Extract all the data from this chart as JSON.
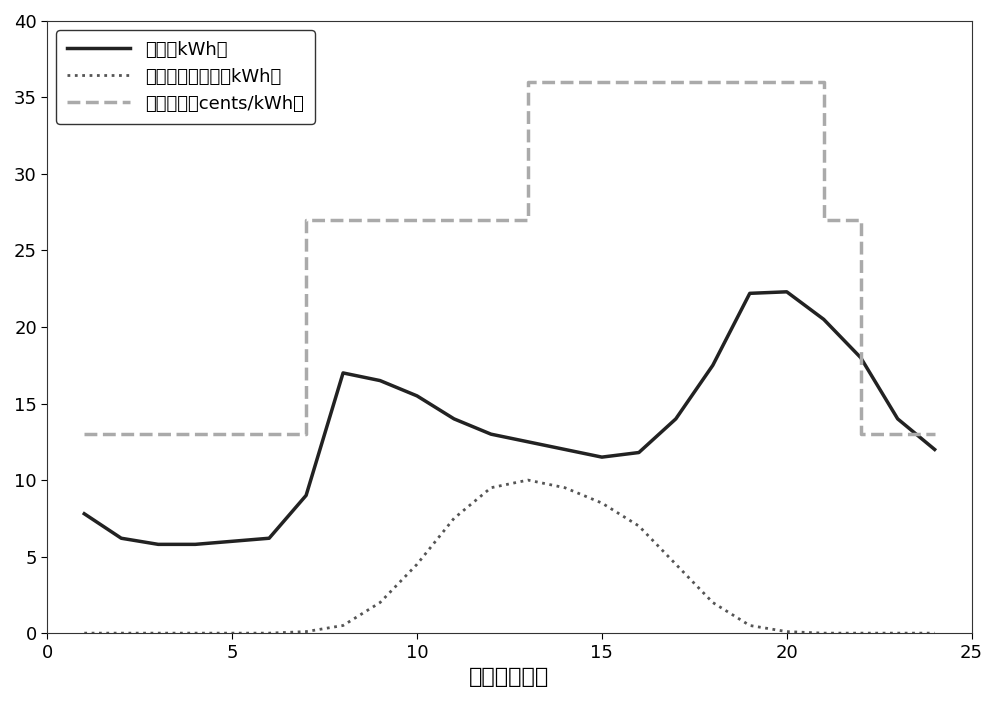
{
  "load_x": [
    1,
    2,
    3,
    4,
    5,
    6,
    7,
    8,
    9,
    10,
    11,
    12,
    13,
    14,
    15,
    16,
    17,
    18,
    19,
    20,
    21,
    22,
    23,
    24
  ],
  "load_y": [
    7.8,
    6.2,
    5.8,
    5.8,
    6.0,
    6.2,
    9.0,
    17.0,
    16.5,
    15.5,
    14.0,
    13.0,
    12.5,
    12.0,
    11.5,
    11.8,
    14.0,
    17.5,
    22.2,
    22.3,
    20.5,
    18.0,
    14.0,
    12.0
  ],
  "renewable_x": [
    1,
    2,
    3,
    4,
    5,
    6,
    7,
    8,
    9,
    10,
    11,
    12,
    13,
    14,
    15,
    16,
    17,
    18,
    19,
    20,
    21,
    22,
    23,
    24
  ],
  "renewable_y": [
    0.0,
    0.0,
    0.0,
    0.0,
    0.0,
    0.0,
    0.1,
    0.5,
    2.0,
    4.5,
    7.5,
    9.5,
    10.0,
    9.5,
    8.5,
    7.0,
    4.5,
    2.0,
    0.5,
    0.1,
    0.0,
    0.0,
    0.0,
    0.0
  ],
  "price_x": [
    1,
    7,
    7,
    13,
    13,
    21,
    21,
    22,
    22,
    24
  ],
  "price_y": [
    13,
    13,
    27,
    27,
    36,
    36,
    27,
    27,
    13,
    13
  ],
  "load_color": "#222222",
  "renewable_color": "#555555",
  "price_color": "#aaaaaa",
  "xlabel": "时间（小时）",
  "legend_load": "负载（kWh）",
  "legend_renewable": "可再生能源发电（kWh）",
  "legend_price": "电网价格（cents/kWh）",
  "xlim": [
    0,
    25
  ],
  "ylim": [
    0,
    40
  ],
  "xticks": [
    0,
    5,
    10,
    15,
    20,
    25
  ],
  "yticks": [
    0,
    5,
    10,
    15,
    20,
    25,
    30,
    35,
    40
  ],
  "xlabel_fontsize": 16,
  "legend_fontsize": 13,
  "tick_fontsize": 13
}
